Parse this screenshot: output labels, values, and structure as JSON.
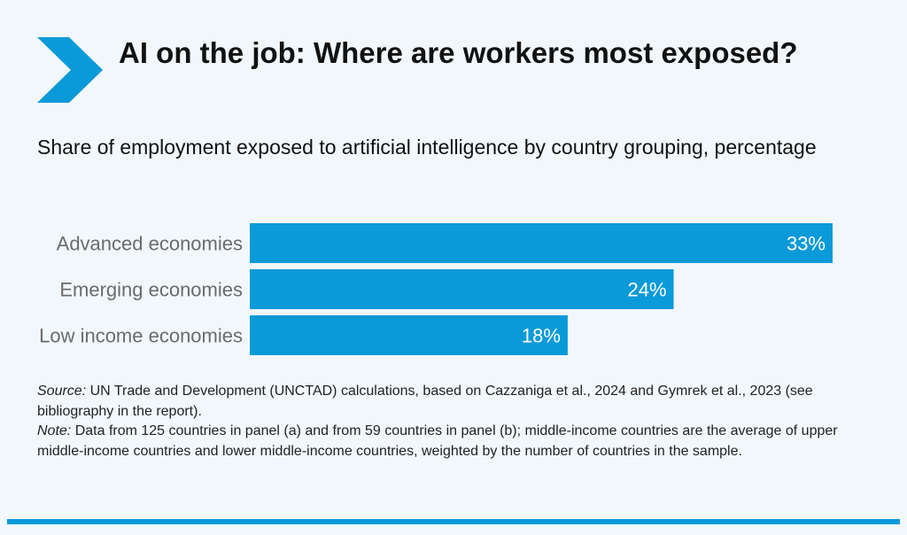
{
  "header": {
    "title": "AI on the job: Where are workers most exposed?",
    "subtitle": "Share of employment exposed to artificial intelligence by country grouping, percentage"
  },
  "colors": {
    "accent": "#0b9ad9",
    "bar": "#0b9ad9",
    "background": "#f2f7fb",
    "label": "#6b6b6b"
  },
  "icons": {
    "logo": "chevron-right-icon"
  },
  "chart_data": {
    "type": "bar",
    "orientation": "horizontal",
    "title": "Share of employment exposed to artificial intelligence by country grouping, percentage",
    "categories": [
      "Advanced economies",
      "Emerging economies",
      "Low income economies"
    ],
    "values": [
      33,
      24,
      18
    ],
    "data_labels": [
      "33%",
      "24%",
      "18%"
    ],
    "unit": "%",
    "xlim": [
      0,
      33
    ],
    "grid": false,
    "legend": "none"
  },
  "notes": {
    "source_label": "Source:",
    "source_text": " UN Trade and Development (UNCTAD) calculations, based on Cazzaniga et al., 2024 and Gymrek et al., 2023 (see bibliography in the report).",
    "note_label": "Note:",
    "note_text": " Data from 125 countries in panel (a) and from 59 countries in panel (b); middle-income countries are the average of upper middle-income countries and lower middle-income countries, weighted by the number of countries in the sample."
  }
}
